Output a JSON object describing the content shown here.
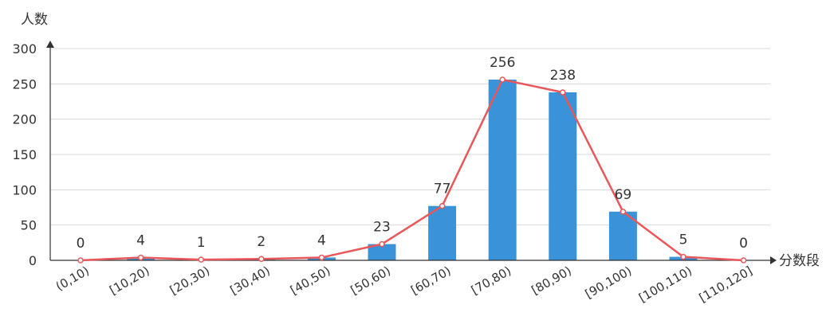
{
  "chart_data": {
    "type": "bar",
    "ylabel": "人数",
    "xlabel": "分数段",
    "ylim": [
      0,
      300
    ],
    "yticks": [
      0,
      50,
      100,
      150,
      200,
      250,
      300
    ],
    "grid": true,
    "categories": [
      "(0,10)",
      "[10,20)",
      "[20,30)",
      "[30,40)",
      "[40,50)",
      "[50,60)",
      "[60,70)",
      "[70,80)",
      "[80,90)",
      "[90,100)",
      "[100,110)",
      "[110,120]"
    ],
    "values": [
      0,
      4,
      1,
      2,
      4,
      23,
      77,
      256,
      238,
      69,
      5,
      0
    ],
    "overlay_line": true,
    "colors": {
      "bar": "#3a93d9",
      "line": "#e8575a",
      "grid": "#d9d9d9",
      "axis": "#333333"
    }
  }
}
